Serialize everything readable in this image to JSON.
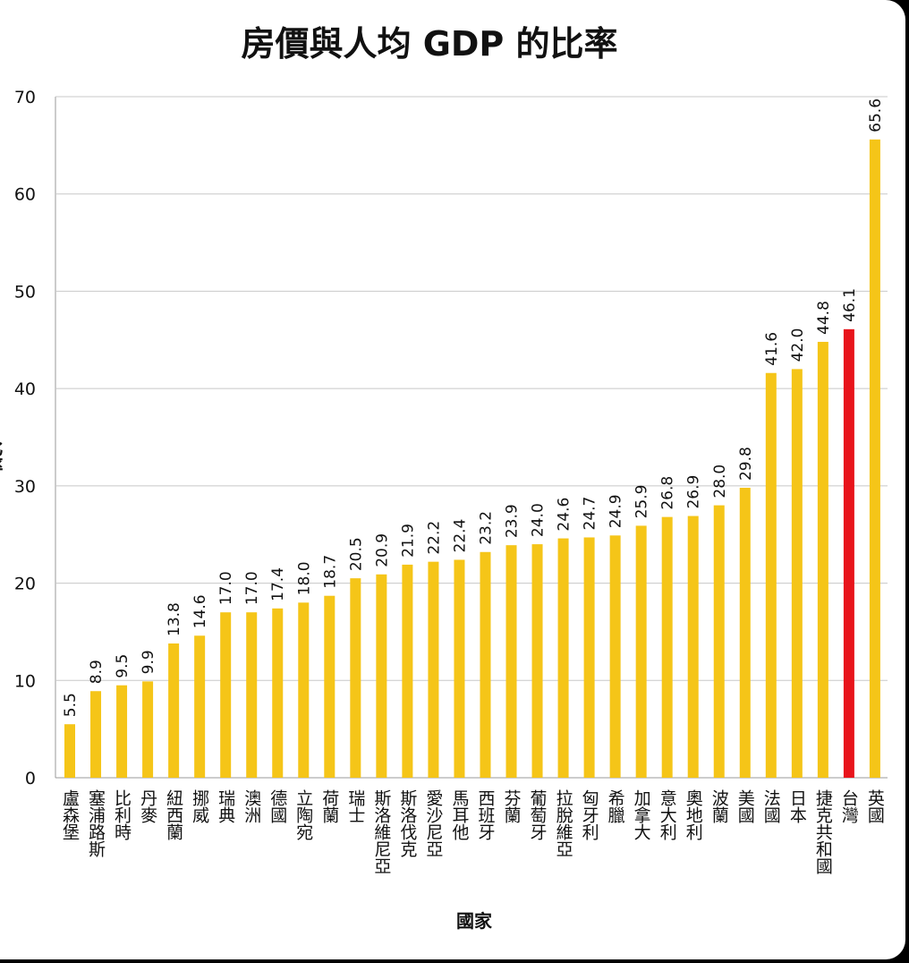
{
  "chart_data": {
    "type": "bar",
    "title": "房價與人均 GDP 的比率",
    "xlabel": "國家",
    "ylabel": "比率",
    "ylim": [
      0,
      70
    ],
    "yticks": [
      0,
      10,
      20,
      30,
      40,
      50,
      60,
      70
    ],
    "grid": true,
    "categories": [
      "盧森堡",
      "塞浦路斯",
      "比利時",
      "丹麥",
      "紐西蘭",
      "挪威",
      "瑞典",
      "澳洲",
      "德國",
      "立陶宛",
      "荷蘭",
      "瑞士",
      "斯洛維尼亞",
      "斯洛伐克",
      "愛沙尼亞",
      "馬耳他",
      "西班牙",
      "芬蘭",
      "葡萄牙",
      "拉脫維亞",
      "匈牙利",
      "希臘",
      "加拿大",
      "意大利",
      "奧地利",
      "波蘭",
      "美國",
      "法國",
      "日本",
      "捷克共和國",
      "台灣",
      "英國"
    ],
    "values": [
      5.5,
      8.9,
      9.5,
      9.9,
      13.8,
      14.6,
      17.0,
      17.0,
      17.4,
      18.0,
      18.7,
      20.5,
      20.9,
      21.9,
      22.2,
      22.4,
      23.2,
      23.9,
      24.0,
      24.6,
      24.7,
      24.9,
      25.9,
      26.8,
      26.9,
      28.0,
      29.8,
      41.6,
      42.0,
      44.8,
      46.1,
      65.6
    ],
    "value_labels": [
      "5.5",
      "8.9",
      "9.5",
      "9.9",
      "13.8",
      "14.6",
      "17.0",
      "17.0",
      "17.4",
      "18.0",
      "18.7",
      "20.5",
      "20.9",
      "21.9",
      "22.2",
      "22.4",
      "23.2",
      "23.9",
      "24.0",
      "24.6",
      "24.7",
      "24.9",
      "25.9",
      "26.8",
      "26.9",
      "28.0",
      "29.8",
      "41.6",
      "42.0",
      "44.8",
      "46.1",
      "65.6"
    ],
    "highlight": "台灣",
    "colors": {
      "bar": "#F5C518",
      "highlight": "#E8141B",
      "grid": "#c8c8c8"
    }
  }
}
